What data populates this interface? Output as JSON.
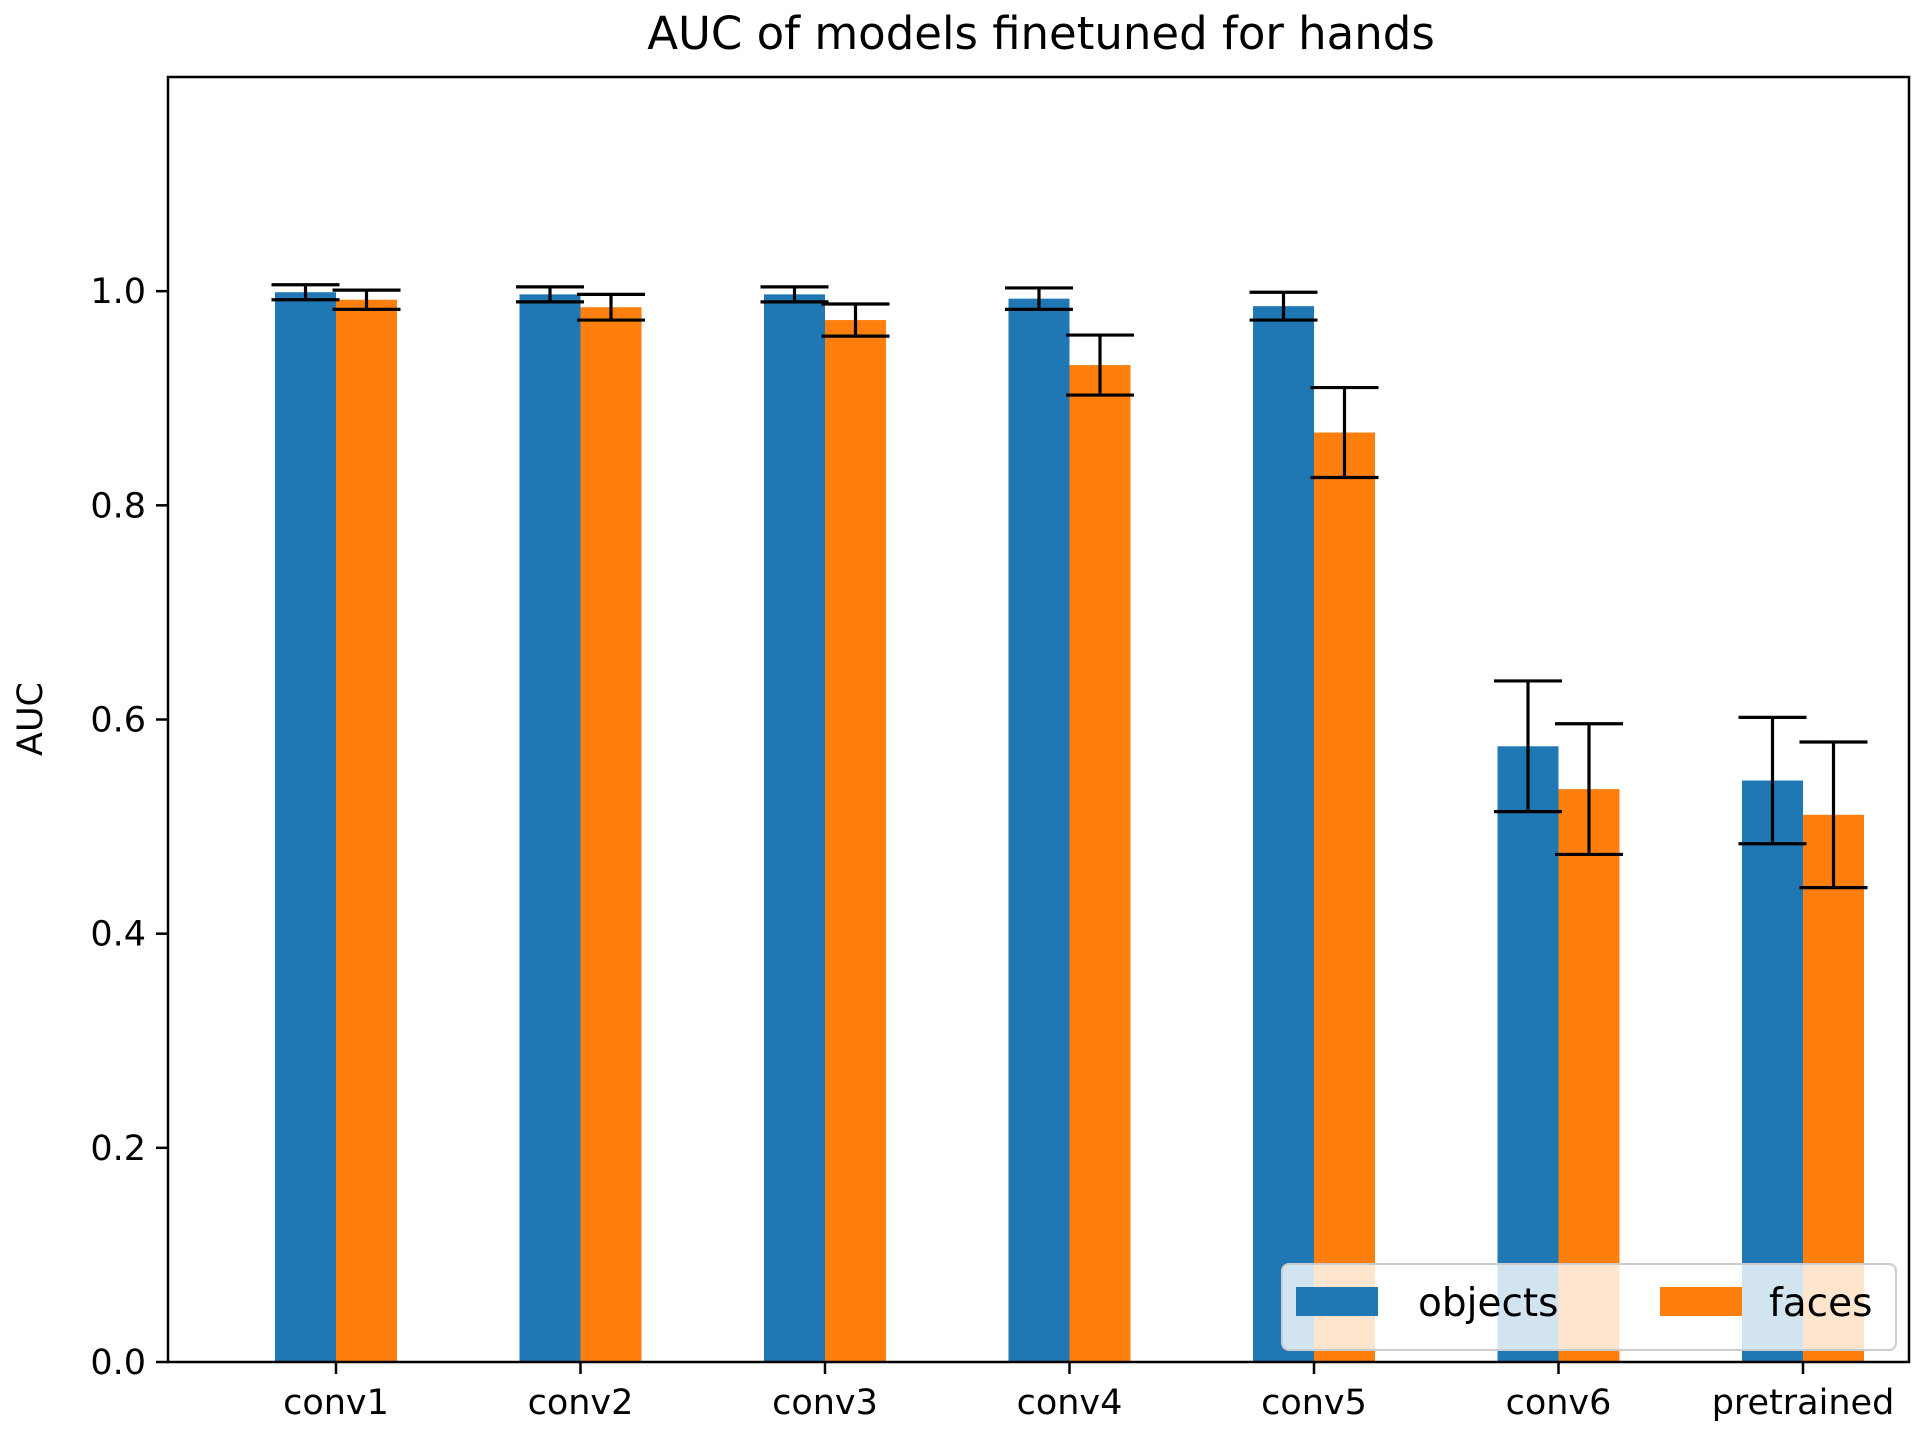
{
  "chart_data": {
    "type": "bar",
    "title": "AUC of models finetuned for hands",
    "xlabel": "",
    "ylabel": "AUC",
    "ylim": [
      0,
      1.2
    ],
    "yticks": [
      "0.0",
      "0.2",
      "0.4",
      "0.6",
      "0.8",
      "1.0"
    ],
    "categories": [
      "conv1",
      "conv2",
      "conv3",
      "conv4",
      "conv5",
      "conv6",
      "pretrained"
    ],
    "series": [
      {
        "name": "objects",
        "color": "#1f77b4",
        "values": [
          0.999,
          0.997,
          0.997,
          0.993,
          0.986,
          0.575,
          0.543
        ],
        "error": [
          0.007,
          0.007,
          0.007,
          0.01,
          0.013,
          0.061,
          0.059
        ]
      },
      {
        "name": "faces",
        "color": "#ff7f0e",
        "values": [
          0.992,
          0.985,
          0.973,
          0.931,
          0.868,
          0.535,
          0.511
        ],
        "error": [
          0.009,
          0.012,
          0.015,
          0.028,
          0.042,
          0.061,
          0.068
        ]
      }
    ],
    "grid": false,
    "legend_position": "bottom-right"
  }
}
